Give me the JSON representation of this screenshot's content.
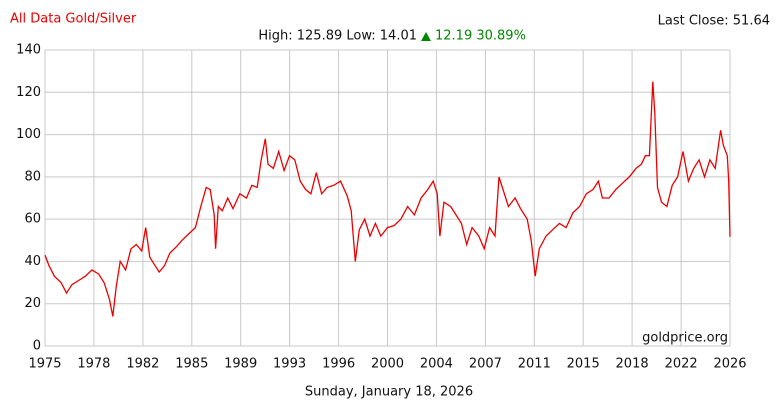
{
  "chart_data": {
    "type": "line",
    "title": "All Data Gold/Silver",
    "subtitle": "High: 125.89 Low: 14.01",
    "change": "12.19 30.89%",
    "last_close": "Last Close: 51.64",
    "watermark": "goldprice.org",
    "date_label": "Sunday, January 18, 2026",
    "x": [
      1975.0,
      1975.3,
      1975.7,
      1976.2,
      1976.6,
      1977.0,
      1977.5,
      1978.0,
      1978.5,
      1979.0,
      1979.4,
      1979.8,
      1980.05,
      1980.3,
      1980.6,
      1981.0,
      1981.4,
      1981.8,
      1982.2,
      1982.5,
      1982.8,
      1983.2,
      1983.5,
      1983.9,
      1984.3,
      1984.8,
      1985.2,
      1985.7,
      1986.2,
      1986.6,
      1987.0,
      1987.3,
      1987.6,
      1987.7,
      1987.9,
      1988.2,
      1988.6,
      1989.0,
      1989.5,
      1990.0,
      1990.4,
      1990.8,
      1991.1,
      1991.4,
      1991.6,
      1992.0,
      1992.4,
      1992.8,
      1993.2,
      1993.6,
      1994.0,
      1994.4,
      1994.8,
      1995.2,
      1995.6,
      1996.0,
      1996.5,
      1997.0,
      1997.5,
      1997.8,
      1998.1,
      1998.4,
      1998.8,
      1999.2,
      1999.6,
      2000.0,
      2000.5,
      2001.0,
      2001.5,
      2002.0,
      2002.5,
      2003.0,
      2003.5,
      2003.9,
      2004.2,
      2004.4,
      2004.7,
      2005.2,
      2005.6,
      2006.0,
      2006.4,
      2006.8,
      2007.3,
      2007.7,
      2008.1,
      2008.5,
      2008.8,
      2009.1,
      2009.5,
      2010.0,
      2010.4,
      2010.9,
      2011.2,
      2011.5,
      2011.8,
      2012.3,
      2012.8,
      2013.3,
      2013.8,
      2014.3,
      2014.8,
      2015.3,
      2015.8,
      2016.2,
      2016.5,
      2017.0,
      2017.5,
      2018.0,
      2018.5,
      2019.0,
      2019.4,
      2019.7,
      2020.0,
      2020.25,
      2020.4,
      2020.6,
      2020.9,
      2021.3,
      2021.7,
      2022.1,
      2022.5,
      2022.9,
      2023.3,
      2023.7,
      2024.1,
      2024.5,
      2024.9,
      2025.3,
      2025.5,
      2025.8,
      2025.9,
      2026.0
    ],
    "series": [
      {
        "name": "Gold/Silver",
        "color": "#ee0000",
        "values": [
          43,
          38,
          33,
          30,
          25,
          29,
          31,
          33,
          36,
          34,
          30,
          22,
          14,
          28,
          40,
          36,
          46,
          48,
          45,
          56,
          42,
          38,
          35,
          38,
          44,
          47,
          50,
          53,
          56,
          66,
          75,
          74,
          62,
          46,
          66,
          64,
          70,
          65,
          72,
          70,
          76,
          75,
          88,
          98,
          86,
          84,
          92,
          83,
          90,
          88,
          78,
          74,
          72,
          82,
          72,
          75,
          76,
          78,
          71,
          64,
          40,
          55,
          60,
          52,
          58,
          52,
          56,
          57,
          60,
          66,
          62,
          70,
          74,
          78,
          72,
          52,
          68,
          66,
          62,
          58,
          48,
          56,
          52,
          46,
          56,
          52,
          80,
          74,
          66,
          70,
          65,
          60,
          50,
          33,
          46,
          52,
          55,
          58,
          56,
          63,
          66,
          72,
          74,
          78,
          70,
          70,
          74,
          77,
          80,
          84,
          86,
          90,
          90,
          125,
          110,
          75,
          68,
          66,
          76,
          80,
          92,
          78,
          84,
          88,
          80,
          88,
          84,
          102,
          95,
          90,
          78,
          51.64
        ]
      }
    ],
    "xlim": [
      1975,
      2026
    ],
    "xticks": [
      1975,
      {
        "value": 1978.64,
        "label": "1978"
      },
      {
        "value": 1982.29,
        "label": "1982"
      },
      {
        "value": 1985.93,
        "label": "1985"
      },
      {
        "value": 1989.57,
        "label": "1989"
      },
      {
        "value": 1993.21,
        "label": "1993"
      },
      {
        "value": 1996.86,
        "label": "1996"
      },
      {
        "value": 2000.5,
        "label": "2000"
      },
      {
        "value": 2004.14,
        "label": "2004"
      },
      {
        "value": 2007.79,
        "label": "2007"
      },
      {
        "value": 2011.43,
        "label": "2011"
      },
      {
        "value": 2015.07,
        "label": "2015"
      },
      {
        "value": 2018.71,
        "label": "2018"
      },
      {
        "value": 2022.36,
        "label": "2022"
      },
      2026
    ],
    "ylim": [
      0,
      140
    ],
    "yticks": [
      0,
      20,
      40,
      60,
      80,
      100,
      120,
      140
    ],
    "grid": true
  }
}
